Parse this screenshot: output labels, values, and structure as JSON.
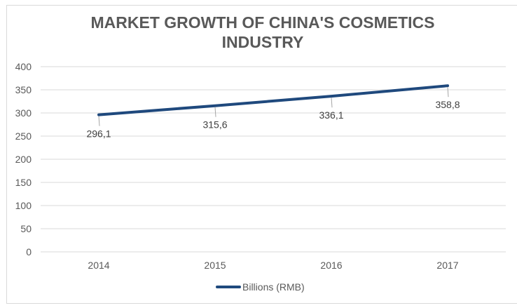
{
  "chart_data": {
    "type": "line",
    "title": "MARKET GROWTH OF CHINA'S COSMETICS INDUSTRY",
    "title_lines": [
      "MARKET GROWTH OF CHINA'S COSMETICS",
      "INDUSTRY"
    ],
    "categories": [
      "2014",
      "2015",
      "2016",
      "2017"
    ],
    "series": [
      {
        "name": "Billions (RMB)",
        "values": [
          296.1,
          315.6,
          336.1,
          358.8
        ],
        "labels": [
          "296,1",
          "315,6",
          "336,1",
          "358,8"
        ],
        "color": "#1f497d"
      }
    ],
    "xlabel": "",
    "ylabel": "",
    "ylim": [
      0,
      400
    ],
    "yticks": [
      0,
      50,
      100,
      150,
      200,
      250,
      300,
      350,
      400
    ],
    "grid": true,
    "legend_position": "bottom"
  },
  "colors": {
    "line": "#1f497d",
    "grid": "#d9d9d9",
    "title": "#595959",
    "tick_text": "#595959"
  }
}
